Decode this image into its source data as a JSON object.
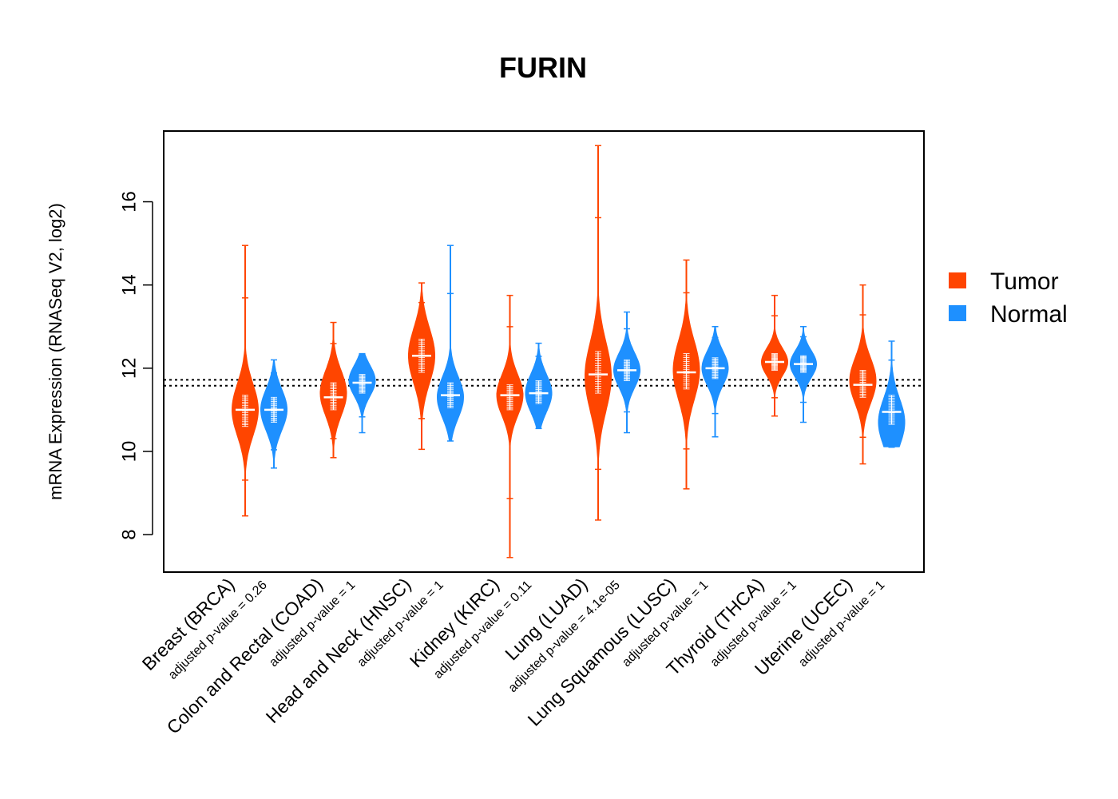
{
  "chart_data": {
    "type": "violin",
    "title": "FURIN",
    "xlabel": "",
    "ylabel": "mRNA Expression (RNASeq V2, log2)",
    "ylim": [
      7.1,
      17.7
    ],
    "yticks": [
      8,
      10,
      12,
      14,
      16
    ],
    "reference_lines": [
      11.58,
      11.72
    ],
    "legend": {
      "position": "right",
      "entries": [
        {
          "label": "Tumor",
          "color": "#FF4500"
        },
        {
          "label": "Normal",
          "color": "#1E90FF"
        }
      ]
    },
    "categories": [
      {
        "name": "Breast (BRCA)",
        "pvalue_label": "adjusted p-value = 0.26",
        "tumor": {
          "min": 8.45,
          "q1": 10.6,
          "median": 11.0,
          "q3": 11.35,
          "max": 14.95,
          "mode": 11.0
        },
        "normal": {
          "min": 9.6,
          "q1": 10.7,
          "median": 11.0,
          "q3": 11.3,
          "max": 12.2,
          "mode": 11.0
        }
      },
      {
        "name": "Colon and Rectal (COAD)",
        "pvalue_label": "adjusted p-value = 1",
        "tumor": {
          "min": 9.85,
          "q1": 11.0,
          "median": 11.3,
          "q3": 11.65,
          "max": 13.1,
          "mode": 11.4
        },
        "normal": {
          "min": 10.45,
          "q1": 11.4,
          "median": 11.65,
          "q3": 11.85,
          "max": 12.35,
          "mode": 11.7
        }
      },
      {
        "name": "Head and Neck (HNSC)",
        "pvalue_label": "adjusted p-value = 1",
        "tumor": {
          "min": 10.05,
          "q1": 11.9,
          "median": 12.3,
          "q3": 12.7,
          "max": 14.05,
          "mode": 12.3
        },
        "normal": {
          "min": 10.25,
          "q1": 11.05,
          "median": 11.35,
          "q3": 11.65,
          "max": 14.95,
          "mode": 11.3
        }
      },
      {
        "name": "Kidney (KIRC)",
        "pvalue_label": "adjusted p-value = 0.11",
        "tumor": {
          "min": 7.45,
          "q1": 11.0,
          "median": 11.35,
          "q3": 11.6,
          "max": 13.75,
          "mode": 11.35
        },
        "normal": {
          "min": 10.55,
          "q1": 11.15,
          "median": 11.4,
          "q3": 11.7,
          "max": 12.6,
          "mode": 11.4
        }
      },
      {
        "name": "Lung (LUAD)",
        "pvalue_label": "adjusted p-value = 4.1e-05",
        "tumor": {
          "min": 8.35,
          "q1": 11.4,
          "median": 11.85,
          "q3": 12.4,
          "max": 17.35,
          "mode": 11.8
        },
        "normal": {
          "min": 10.45,
          "q1": 11.7,
          "median": 11.95,
          "q3": 12.2,
          "max": 13.35,
          "mode": 11.95
        }
      },
      {
        "name": "Lung Squamous (LUSC)",
        "pvalue_label": "adjusted p-value = 1",
        "tumor": {
          "min": 9.1,
          "q1": 11.5,
          "median": 11.9,
          "q3": 12.35,
          "max": 14.6,
          "mode": 11.95
        },
        "normal": {
          "min": 10.35,
          "q1": 11.75,
          "median": 12.0,
          "q3": 12.25,
          "max": 13.0,
          "mode": 12.0
        }
      },
      {
        "name": "Thyroid (THCA)",
        "pvalue_label": "adjusted p-value = 1",
        "tumor": {
          "min": 10.85,
          "q1": 11.95,
          "median": 12.15,
          "q3": 12.35,
          "max": 13.75,
          "mode": 12.15
        },
        "normal": {
          "min": 10.7,
          "q1": 11.9,
          "median": 12.1,
          "q3": 12.3,
          "max": 13.0,
          "mode": 12.1
        }
      },
      {
        "name": "Uterine (UCEC)",
        "pvalue_label": "adjusted p-value = 1",
        "tumor": {
          "min": 9.7,
          "q1": 11.3,
          "median": 11.6,
          "q3": 11.95,
          "max": 14.0,
          "mode": 11.7
        },
        "normal": {
          "min": 10.1,
          "q1": 10.65,
          "median": 10.95,
          "q3": 11.35,
          "max": 12.65,
          "mode": 10.7
        }
      }
    ]
  }
}
